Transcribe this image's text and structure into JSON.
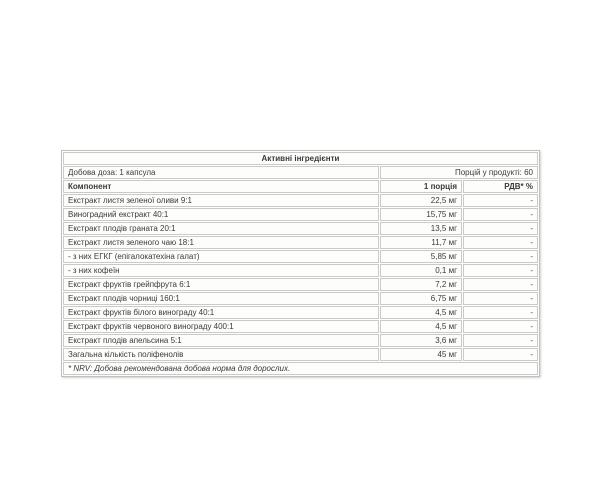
{
  "table": {
    "title": "Активні інгредієнти",
    "dose_label": "Добова доза: 1 капсула",
    "servings_label": "Порцій у продукті: 60",
    "columns": {
      "component": "Компонент",
      "per_serving": "1 порція",
      "rdv_percent": "РДВ* %"
    },
    "rows": [
      {
        "component": "Екстракт листя зеленої оливи 9:1",
        "amount": "22,5 мг",
        "rdv": "-",
        "indent": false
      },
      {
        "component": "Виноградний екстракт 40:1",
        "amount": "15,75 мг",
        "rdv": "-",
        "indent": false
      },
      {
        "component": "Екстракт плодів граната 20:1",
        "amount": "13,5 мг",
        "rdv": "-",
        "indent": false
      },
      {
        "component": "Екстракт листя зеленого чаю 18:1",
        "amount": "11,7 мг",
        "rdv": "-",
        "indent": false
      },
      {
        "component": "- з них ЕГКГ (епігалокатехіна галат)",
        "amount": "5,85 мг",
        "rdv": "-",
        "indent": true
      },
      {
        "component": "- з них кофеїн",
        "amount": "0,1 мг",
        "rdv": "-",
        "indent": true
      },
      {
        "component": "Екстракт фруктів грейпфрута 6:1",
        "amount": "7,2 мг",
        "rdv": "-",
        "indent": false
      },
      {
        "component": "Екстракт плодів чорниці 160:1",
        "amount": "6,75 мг",
        "rdv": "-",
        "indent": false
      },
      {
        "component": "Екстракт фруктів білого винограду 40:1",
        "amount": "4,5 мг",
        "rdv": "-",
        "indent": false
      },
      {
        "component": "Екстракт фруктів червоного винограду 400:1",
        "amount": "4,5 мг",
        "rdv": "-",
        "indent": false
      },
      {
        "component": "Екстракт плодів апельсина 5:1",
        "amount": "3,6 мг",
        "rdv": "-",
        "indent": false
      },
      {
        "component": "Загальна кількість поліфенолів",
        "amount": "45 мг",
        "rdv": "-",
        "indent": false
      }
    ],
    "footnote": "* NRV: Добова рекомендована добова норма для дорослих."
  },
  "colors": {
    "cell_border": "#cacac6",
    "outer_border": "#bfbfbb",
    "text": "#3a3a3a",
    "background": "#ffffff"
  }
}
